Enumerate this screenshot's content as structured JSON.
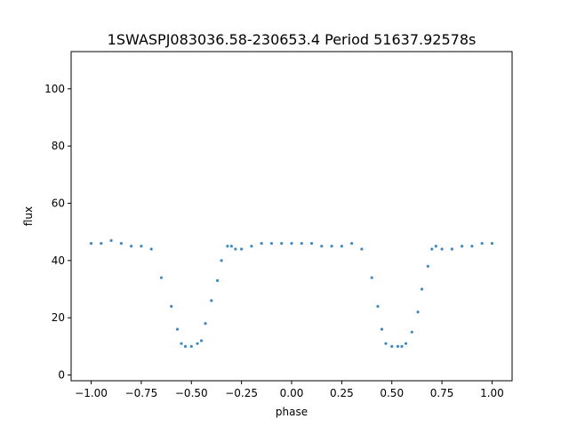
{
  "chart_data": {
    "type": "scatter",
    "title": "1SWASPJ083036.58-230653.4 Period 51637.92578s",
    "xlabel": "phase",
    "ylabel": "flux",
    "xlim": [
      -1.1,
      1.1
    ],
    "ylim": [
      -2,
      113
    ],
    "xticks": [
      -1.0,
      -0.75,
      -0.5,
      -0.25,
      0.0,
      0.25,
      0.5,
      0.75,
      1.0
    ],
    "xtick_labels": [
      "−1.00",
      "−0.75",
      "−0.50",
      "−0.25",
      "0.00",
      "0.25",
      "0.50",
      "0.75",
      "1.00"
    ],
    "yticks": [
      0,
      20,
      40,
      60,
      80,
      100
    ],
    "ytick_labels": [
      "0",
      "20",
      "40",
      "60",
      "80",
      "100"
    ],
    "grid": false,
    "marker_color": "#1f77b4",
    "series": [
      {
        "name": "",
        "x": [
          -1.0,
          -0.95,
          -0.9,
          -0.85,
          -0.8,
          -0.75,
          -0.7,
          -0.65,
          -0.6,
          -0.57,
          -0.55,
          -0.53,
          -0.5,
          -0.47,
          -0.45,
          -0.43,
          -0.4,
          -0.37,
          -0.35,
          -0.32,
          -0.3,
          -0.28,
          -0.25,
          -0.2,
          -0.15,
          -0.1,
          -0.05,
          0.0,
          0.05,
          0.1,
          0.15,
          0.2,
          0.25,
          0.3,
          0.35,
          0.4,
          0.43,
          0.45,
          0.47,
          0.5,
          0.53,
          0.55,
          0.57,
          0.6,
          0.63,
          0.65,
          0.68,
          0.7,
          0.72,
          0.75,
          0.8,
          0.85,
          0.9,
          0.95,
          1.0
        ],
        "y": [
          46,
          46,
          47,
          46,
          45,
          45,
          44,
          34,
          24,
          16,
          11,
          10,
          10,
          11,
          12,
          18,
          26,
          33,
          40,
          45,
          45,
          44,
          44,
          45,
          46,
          46,
          46,
          46,
          46,
          46,
          45,
          45,
          45,
          46,
          44,
          34,
          24,
          16,
          11,
          10,
          10,
          10,
          11,
          15,
          22,
          30,
          38,
          44,
          45,
          44,
          44,
          45,
          45,
          46,
          46
        ]
      }
    ]
  }
}
